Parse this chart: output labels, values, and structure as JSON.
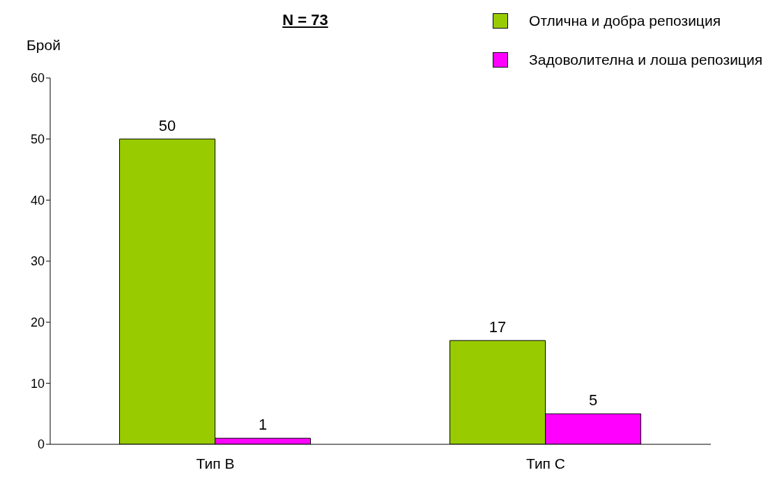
{
  "chart_data": {
    "type": "bar",
    "title": "N = 73",
    "ylabel": "Брой",
    "categories": [
      "Тип В",
      "Тип С"
    ],
    "series": [
      {
        "name": "Отлична и добра репозиция",
        "color": "#99cc00",
        "values": [
          50,
          17
        ]
      },
      {
        "name": "Задоволителна и лоша репозиция",
        "color": "#ff00ff",
        "values": [
          1,
          5
        ]
      }
    ],
    "ylim": [
      0,
      60
    ],
    "yticks": [
      0,
      10,
      20,
      30,
      40,
      50,
      60
    ],
    "grid": false,
    "legend": "top right",
    "data_labels": true
  }
}
